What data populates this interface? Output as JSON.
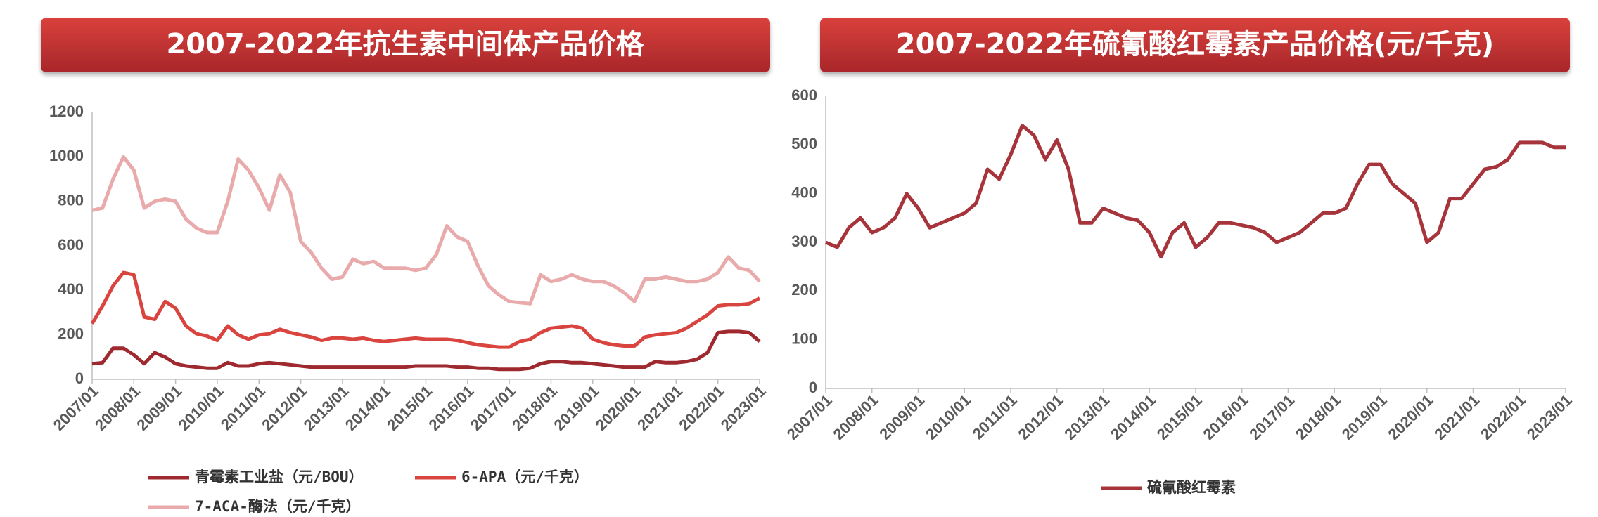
{
  "chart_data": [
    {
      "type": "line",
      "title": "2007-2022年抗生素中间体产品价格",
      "x": [
        2007,
        2007.25,
        2007.5,
        2007.75,
        2008,
        2008.25,
        2008.5,
        2008.75,
        2009,
        2009.25,
        2009.5,
        2009.75,
        2010,
        2010.25,
        2010.5,
        2010.75,
        2011,
        2011.25,
        2011.5,
        2011.75,
        2012,
        2012.25,
        2012.5,
        2012.75,
        2013,
        2013.25,
        2013.5,
        2013.75,
        2014,
        2014.25,
        2014.5,
        2014.75,
        2015,
        2015.25,
        2015.5,
        2015.75,
        2016,
        2016.25,
        2016.5,
        2016.75,
        2017,
        2017.25,
        2017.5,
        2017.75,
        2018,
        2018.25,
        2018.5,
        2018.75,
        2019,
        2019.25,
        2019.5,
        2019.75,
        2020,
        2020.25,
        2020.5,
        2020.75,
        2021,
        2021.25,
        2021.5,
        2021.75,
        2022,
        2022.25,
        2022.5,
        2022.75,
        2023
      ],
      "series": [
        {
          "name": "青霉素工业盐（元/BOU）",
          "color": "#9e2a2f",
          "values": [
            70,
            75,
            140,
            140,
            110,
            70,
            120,
            100,
            70,
            60,
            55,
            50,
            50,
            75,
            60,
            60,
            70,
            75,
            70,
            65,
            60,
            55,
            55,
            55,
            55,
            55,
            55,
            55,
            55,
            55,
            55,
            60,
            60,
            60,
            60,
            55,
            55,
            50,
            50,
            45,
            45,
            45,
            50,
            70,
            80,
            80,
            75,
            75,
            70,
            65,
            60,
            55,
            55,
            55,
            80,
            75,
            75,
            80,
            90,
            120,
            210,
            215,
            215,
            210,
            170
          ]
        },
        {
          "name": "6-APA（元/千克）",
          "color": "#d9443f",
          "values": [
            250,
            330,
            420,
            480,
            470,
            280,
            270,
            350,
            320,
            240,
            205,
            195,
            175,
            240,
            200,
            180,
            200,
            205,
            225,
            210,
            200,
            190,
            175,
            185,
            185,
            180,
            185,
            175,
            170,
            175,
            180,
            185,
            180,
            180,
            180,
            175,
            165,
            155,
            150,
            145,
            145,
            170,
            180,
            210,
            230,
            235,
            240,
            230,
            180,
            165,
            155,
            150,
            150,
            190,
            200,
            205,
            210,
            230,
            260,
            290,
            330,
            335,
            335,
            340,
            365
          ]
        },
        {
          "name": "7-ACA-酶法（元/千克）",
          "color": "#e8aaaa",
          "values": [
            760,
            770,
            900,
            1000,
            940,
            770,
            800,
            810,
            800,
            720,
            680,
            660,
            660,
            800,
            990,
            940,
            860,
            760,
            920,
            840,
            620,
            570,
            500,
            450,
            460,
            540,
            520,
            530,
            500,
            500,
            500,
            490,
            500,
            560,
            690,
            640,
            620,
            510,
            420,
            380,
            350,
            345,
            340,
            470,
            440,
            450,
            470,
            450,
            440,
            440,
            420,
            390,
            350,
            450,
            450,
            460,
            450,
            440,
            440,
            450,
            480,
            550,
            500,
            490,
            440
          ]
        }
      ],
      "xlim": [
        2007,
        2023
      ],
      "xticks": [
        {
          "value": 2007,
          "label": "2007/01"
        },
        {
          "value": 2008,
          "label": "2008/01"
        },
        {
          "value": 2009,
          "label": "2009/01"
        },
        {
          "value": 2010,
          "label": "2010/01"
        },
        {
          "value": 2011,
          "label": "2011/01"
        },
        {
          "value": 2012,
          "label": "2012/01"
        },
        {
          "value": 2013,
          "label": "2013/01"
        },
        {
          "value": 2014,
          "label": "2014/01"
        },
        {
          "value": 2015,
          "label": "2015/01"
        },
        {
          "value": 2016,
          "label": "2016/01"
        },
        {
          "value": 2017,
          "label": "2017/01"
        },
        {
          "value": 2018,
          "label": "2018/01"
        },
        {
          "value": 2019,
          "label": "2019/01"
        },
        {
          "value": 2020,
          "label": "2020/01"
        },
        {
          "value": 2021,
          "label": "2021/01"
        },
        {
          "value": 2022,
          "label": "2022/01"
        },
        {
          "value": 2023,
          "label": "2023/01"
        }
      ],
      "ylim": [
        0,
        1200
      ],
      "yticks": [
        0,
        200,
        400,
        600,
        800,
        1000,
        1200
      ]
    },
    {
      "type": "line",
      "title": "2007-2022年硫氰酸红霉素产品价格(元/千克)",
      "x": [
        2007,
        2007.25,
        2007.5,
        2007.75,
        2008,
        2008.25,
        2008.5,
        2008.75,
        2009,
        2009.25,
        2009.5,
        2009.75,
        2010,
        2010.25,
        2010.5,
        2010.75,
        2011,
        2011.25,
        2011.5,
        2011.75,
        2012,
        2012.25,
        2012.5,
        2012.75,
        2013,
        2013.25,
        2013.5,
        2013.75,
        2014,
        2014.25,
        2014.5,
        2014.75,
        2015,
        2015.25,
        2015.5,
        2015.75,
        2016,
        2016.25,
        2016.5,
        2016.75,
        2017,
        2017.25,
        2017.5,
        2017.75,
        2018,
        2018.25,
        2018.5,
        2018.75,
        2019,
        2019.25,
        2019.5,
        2019.75,
        2020,
        2020.25,
        2020.5,
        2020.75,
        2021,
        2021.25,
        2021.5,
        2021.75,
        2022,
        2022.25,
        2022.5,
        2022.75,
        2023
      ],
      "series": [
        {
          "name": "硫氰酸红霉素",
          "color": "#a7343a",
          "values": [
            300,
            290,
            330,
            350,
            320,
            330,
            350,
            400,
            370,
            330,
            340,
            350,
            360,
            380,
            450,
            430,
            480,
            540,
            520,
            470,
            510,
            450,
            340,
            340,
            370,
            360,
            350,
            345,
            320,
            270,
            320,
            340,
            290,
            310,
            340,
            340,
            335,
            330,
            320,
            300,
            310,
            320,
            340,
            360,
            360,
            370,
            420,
            460,
            460,
            420,
            400,
            380,
            300,
            320,
            390,
            390,
            420,
            450,
            455,
            470,
            505,
            505,
            505,
            495,
            495
          ]
        }
      ],
      "xlim": [
        2007,
        2023
      ],
      "xticks": [
        {
          "value": 2007,
          "label": "2007/01"
        },
        {
          "value": 2008,
          "label": "2008/01"
        },
        {
          "value": 2009,
          "label": "2009/01"
        },
        {
          "value": 2010,
          "label": "2010/01"
        },
        {
          "value": 2011,
          "label": "2011/01"
        },
        {
          "value": 2012,
          "label": "2012/01"
        },
        {
          "value": 2013,
          "label": "2013/01"
        },
        {
          "value": 2014,
          "label": "2014/01"
        },
        {
          "value": 2015,
          "label": "2015/01"
        },
        {
          "value": 2016,
          "label": "2016/01"
        },
        {
          "value": 2017,
          "label": "2017/01"
        },
        {
          "value": 2018,
          "label": "2018/01"
        },
        {
          "value": 2019,
          "label": "2019/01"
        },
        {
          "value": 2020,
          "label": "2020/01"
        },
        {
          "value": 2021,
          "label": "2021/01"
        },
        {
          "value": 2022,
          "label": "2022/01"
        },
        {
          "value": 2023,
          "label": "2023/01"
        }
      ],
      "ylim": [
        0,
        600
      ],
      "yticks": [
        0,
        100,
        200,
        300,
        400,
        500,
        600
      ]
    }
  ]
}
